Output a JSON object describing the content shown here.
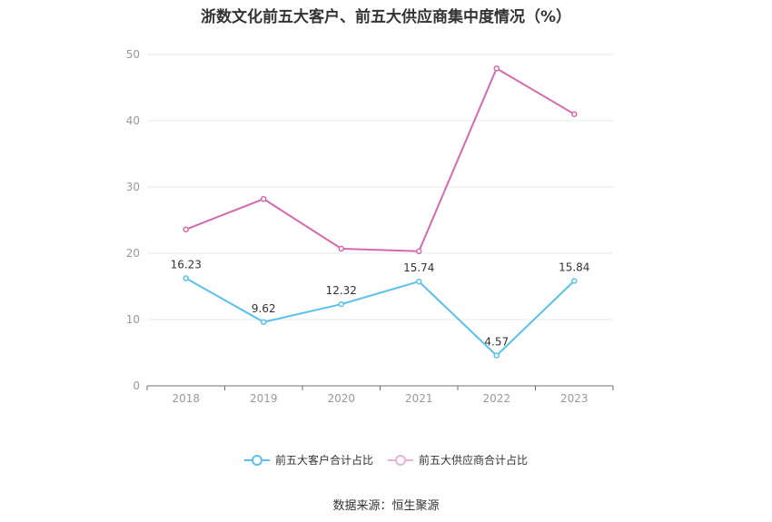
{
  "chart_data": {
    "type": "line",
    "title": "浙数文化前五大客户、前五大供应商集中度情况（%）",
    "categories": [
      "2018",
      "2019",
      "2020",
      "2021",
      "2022",
      "2023"
    ],
    "ylim": [
      0,
      50
    ],
    "yticks": [
      0,
      10,
      20,
      30,
      40,
      50
    ],
    "grid": true,
    "legend_position": "bottom-center",
    "series": [
      {
        "name": "前五大客户合计占比",
        "color": "#5bc0eb",
        "values": [
          16.23,
          9.62,
          12.32,
          15.74,
          4.57,
          15.84
        ],
        "labels": [
          "16.23",
          "9.62",
          "12.32",
          "15.74",
          "4.57",
          "15.84"
        ]
      },
      {
        "name": "前五大供应商合计占比",
        "color": "#d36aae",
        "values": [
          23.6,
          28.2,
          20.7,
          20.3,
          47.9,
          41.0
        ]
      }
    ]
  },
  "footer": {
    "source": "数据来源：恒生聚源"
  }
}
